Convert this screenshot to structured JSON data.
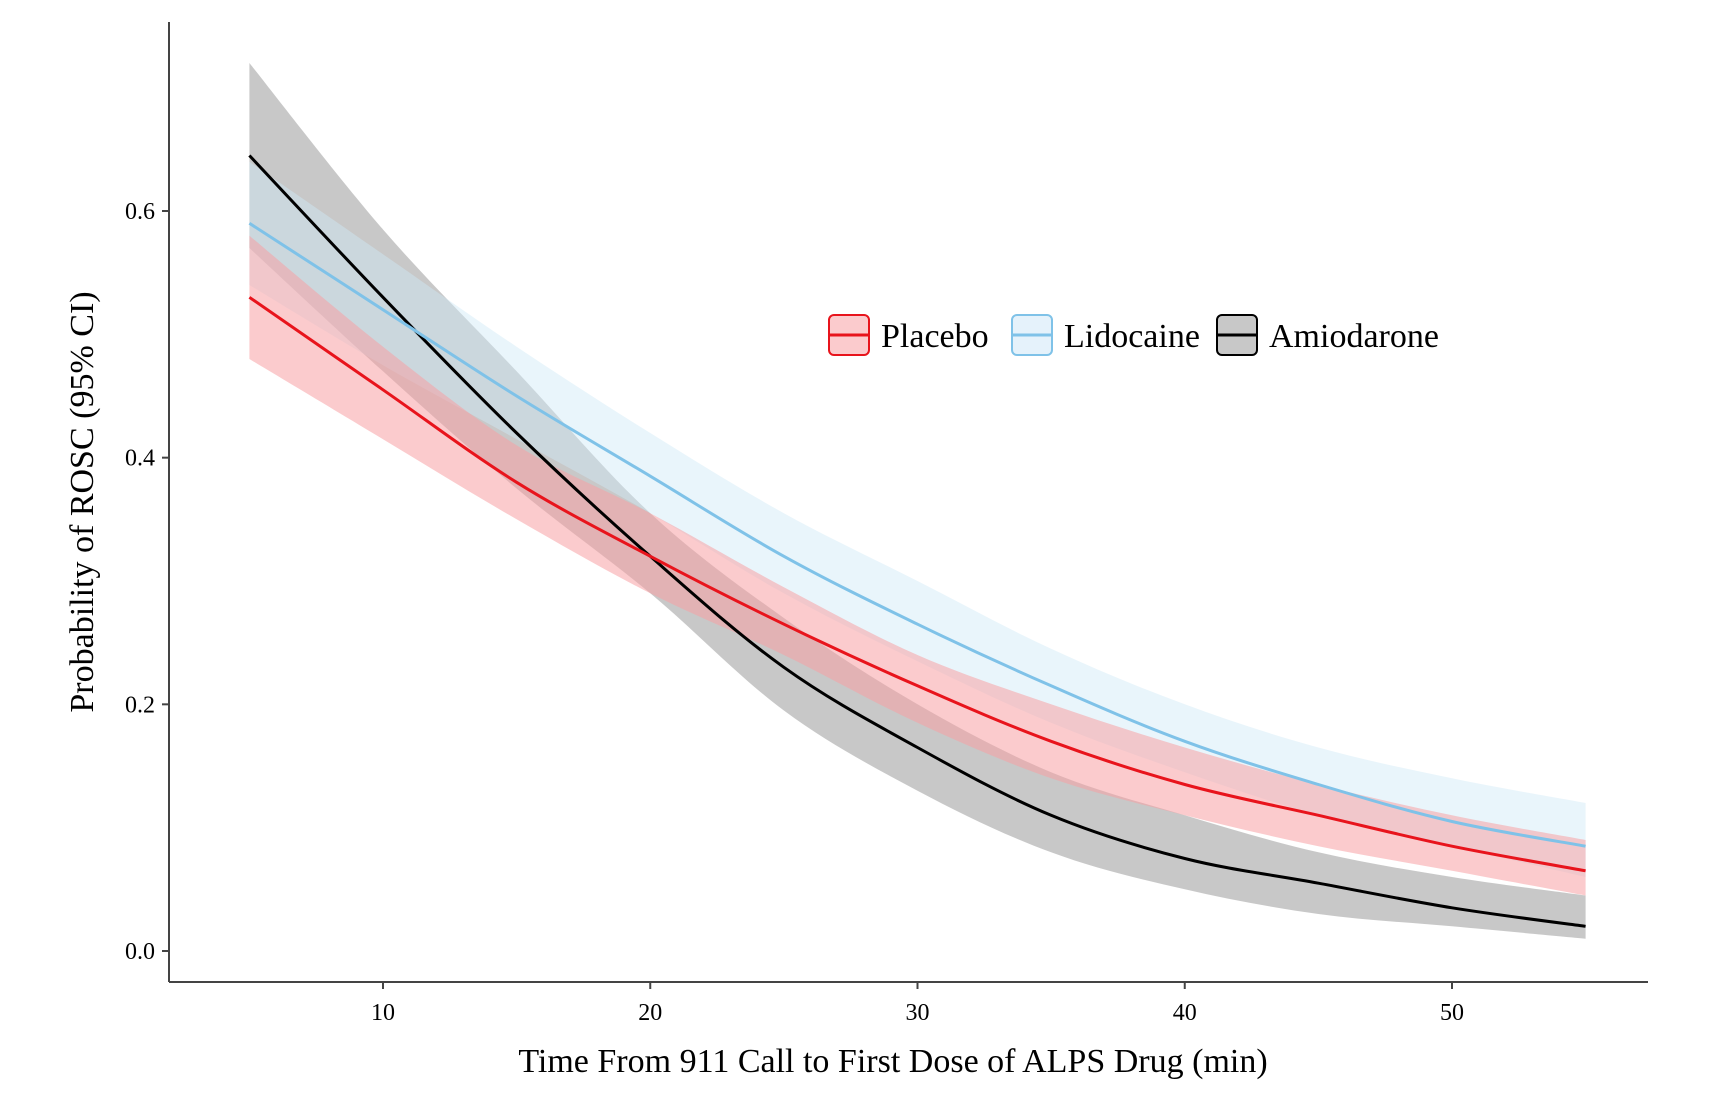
{
  "chart_data": {
    "type": "line",
    "title": "",
    "xlabel": "Time From 911 Call to First Dose of ALPS Drug (min)",
    "ylabel": "Probability of ROSC (95% CI)",
    "xlim": [
      2,
      57
    ],
    "ylim": [
      -0.03,
      0.75
    ],
    "xticks": [
      10,
      20,
      30,
      40,
      50
    ],
    "yticks": [
      0.0,
      0.2,
      0.4,
      0.6
    ],
    "xtick_labels": [
      "10",
      "20",
      "30",
      "40",
      "50"
    ],
    "ytick_labels": [
      "0.0",
      "0.2",
      "0.4",
      "0.6"
    ],
    "grid": false,
    "legend_position": "top-right",
    "x": [
      5,
      10,
      15,
      20,
      25,
      30,
      35,
      40,
      45,
      50,
      55
    ],
    "series": [
      {
        "name": "Placebo",
        "color": "#e8141c",
        "band_color": "#f7a1a4",
        "values": [
          0.53,
          0.455,
          0.38,
          0.32,
          0.265,
          0.215,
          0.17,
          0.135,
          0.11,
          0.085,
          0.065
        ],
        "lower": [
          0.48,
          0.415,
          0.35,
          0.29,
          0.24,
          0.185,
          0.14,
          0.11,
          0.085,
          0.065,
          0.045
        ],
        "upper": [
          0.58,
          0.49,
          0.41,
          0.355,
          0.295,
          0.24,
          0.2,
          0.165,
          0.135,
          0.11,
          0.09
        ]
      },
      {
        "name": "Lidocaine",
        "color": "#7fc2e8",
        "band_color": "#cfe8f7",
        "values": [
          0.59,
          0.52,
          0.45,
          0.385,
          0.32,
          0.265,
          0.215,
          0.17,
          0.135,
          0.105,
          0.085
        ],
        "lower": [
          0.54,
          0.475,
          0.415,
          0.355,
          0.29,
          0.235,
          0.185,
          0.145,
          0.11,
          0.085,
          0.06
        ],
        "upper": [
          0.64,
          0.565,
          0.49,
          0.42,
          0.355,
          0.3,
          0.245,
          0.2,
          0.165,
          0.14,
          0.12
        ]
      },
      {
        "name": "Amiodarone",
        "color": "#000000",
        "band_color": "#9a9a9a",
        "values": [
          0.645,
          0.53,
          0.42,
          0.32,
          0.23,
          0.165,
          0.11,
          0.075,
          0.055,
          0.035,
          0.02
        ],
        "lower": [
          0.57,
          0.47,
          0.375,
          0.29,
          0.195,
          0.13,
          0.08,
          0.05,
          0.03,
          0.02,
          0.01
        ],
        "upper": [
          0.72,
          0.585,
          0.47,
          0.355,
          0.27,
          0.2,
          0.145,
          0.11,
          0.08,
          0.06,
          0.045
        ]
      }
    ]
  }
}
